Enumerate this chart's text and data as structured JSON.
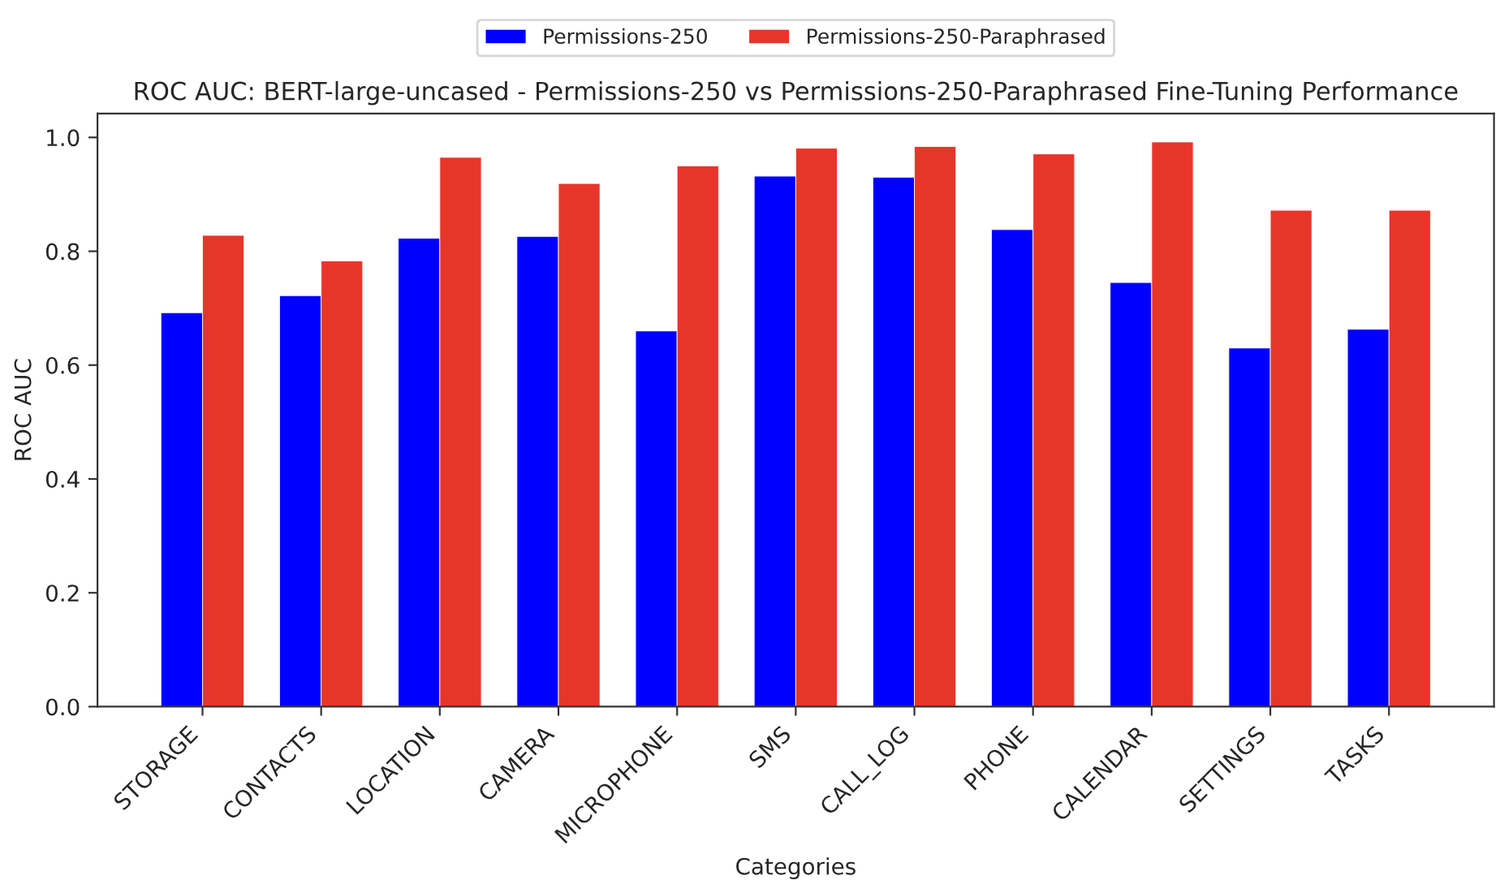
{
  "chart_data": {
    "type": "bar",
    "title": "ROC AUC: BERT-large-uncased - Permissions-250 vs Permissions-250-Paraphrased Fine-Tuning Performance",
    "xlabel": "Categories",
    "ylabel": "ROC AUC",
    "categories": [
      "STORAGE",
      "CONTACTS",
      "LOCATION",
      "CAMERA",
      "MICROPHONE",
      "SMS",
      "CALL_LOG",
      "PHONE",
      "CALENDAR",
      "SETTINGS",
      "TASKS"
    ],
    "series": [
      {
        "name": "Permissions-250",
        "color": "#0000ff",
        "values": [
          0.692,
          0.722,
          0.823,
          0.826,
          0.66,
          0.932,
          0.93,
          0.838,
          0.745,
          0.63,
          0.663
        ]
      },
      {
        "name": "Permissions-250-Paraphrased",
        "color": "#e8352a",
        "values": [
          0.828,
          0.783,
          0.965,
          0.919,
          0.95,
          0.981,
          0.984,
          0.971,
          0.992,
          0.872,
          0.872
        ]
      }
    ],
    "ylim": [
      0,
      1.042
    ],
    "yticks": [
      {
        "value": 0,
        "label": "0.0"
      },
      0.2,
      0.4,
      0.6,
      0.8,
      {
        "value": 1,
        "label": "1.0"
      }
    ],
    "legend": "top",
    "grid": false
  }
}
